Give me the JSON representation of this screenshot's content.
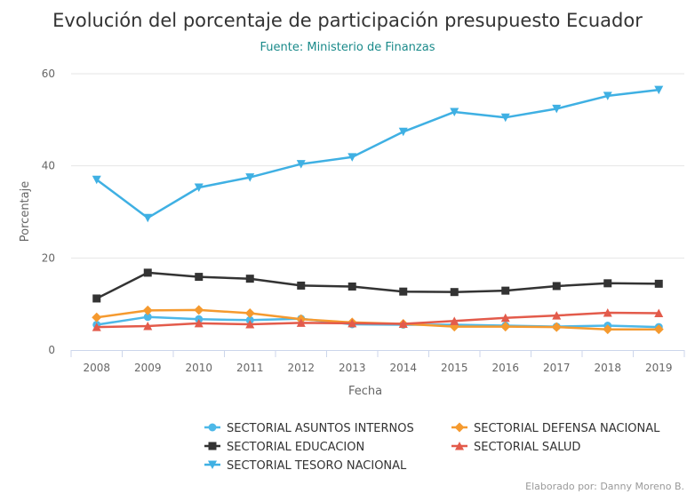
{
  "colors": {
    "subtitle": "#1a8a8a",
    "grid": "#e6e6e6",
    "axis_line": "#ccd6eb"
  },
  "chart_data": {
    "type": "line",
    "title": "Evolución del porcentaje de participación presupuesto Ecuador",
    "subtitle": "Fuente: Ministerio de Finanzas",
    "xlabel": "Fecha",
    "ylabel": "Porcentaje",
    "credit": "Elaborado por: Danny Moreno B.",
    "categories": [
      "2008",
      "2009",
      "2010",
      "2011",
      "2012",
      "2013",
      "2014",
      "2015",
      "2016",
      "2017",
      "2018",
      "2019"
    ],
    "ylim": [
      0,
      60
    ],
    "yticks": [
      0,
      20,
      40,
      60
    ],
    "grid": true,
    "legend_position": "bottom",
    "series": [
      {
        "name": "SECTORIAL ASUNTOS INTERNOS",
        "color": "#4db8e8",
        "marker": "circle",
        "values": [
          5.5,
          7.2,
          6.7,
          6.5,
          6.8,
          5.6,
          5.5,
          5.5,
          5.3,
          5.1,
          5.3,
          5.0
        ]
      },
      {
        "name": "SECTORIAL DEFENSA NACIONAL",
        "color": "#f59a2f",
        "marker": "diamond",
        "values": [
          7.1,
          8.6,
          8.7,
          8.0,
          6.7,
          6.0,
          5.7,
          5.1,
          5.1,
          5.0,
          4.5,
          4.5
        ]
      },
      {
        "name": "SECTORIAL EDUCACION",
        "color": "#333333",
        "marker": "square",
        "values": [
          11.2,
          16.8,
          15.9,
          15.5,
          14.0,
          13.8,
          12.7,
          12.6,
          12.9,
          13.9,
          14.5,
          14.4
        ]
      },
      {
        "name": "SECTORIAL SALUD",
        "color": "#e35b4b",
        "marker": "triangle",
        "values": [
          5.0,
          5.2,
          5.8,
          5.6,
          5.9,
          5.8,
          5.7,
          6.3,
          7.0,
          7.5,
          8.1,
          8.0
        ]
      },
      {
        "name": "SECTORIAL TESORO NACIONAL",
        "color": "#3fb0e3",
        "marker": "triangle-down",
        "values": [
          37.0,
          28.7,
          35.3,
          37.5,
          40.4,
          41.9,
          47.4,
          51.7,
          50.5,
          52.4,
          55.2,
          56.5
        ]
      }
    ]
  }
}
